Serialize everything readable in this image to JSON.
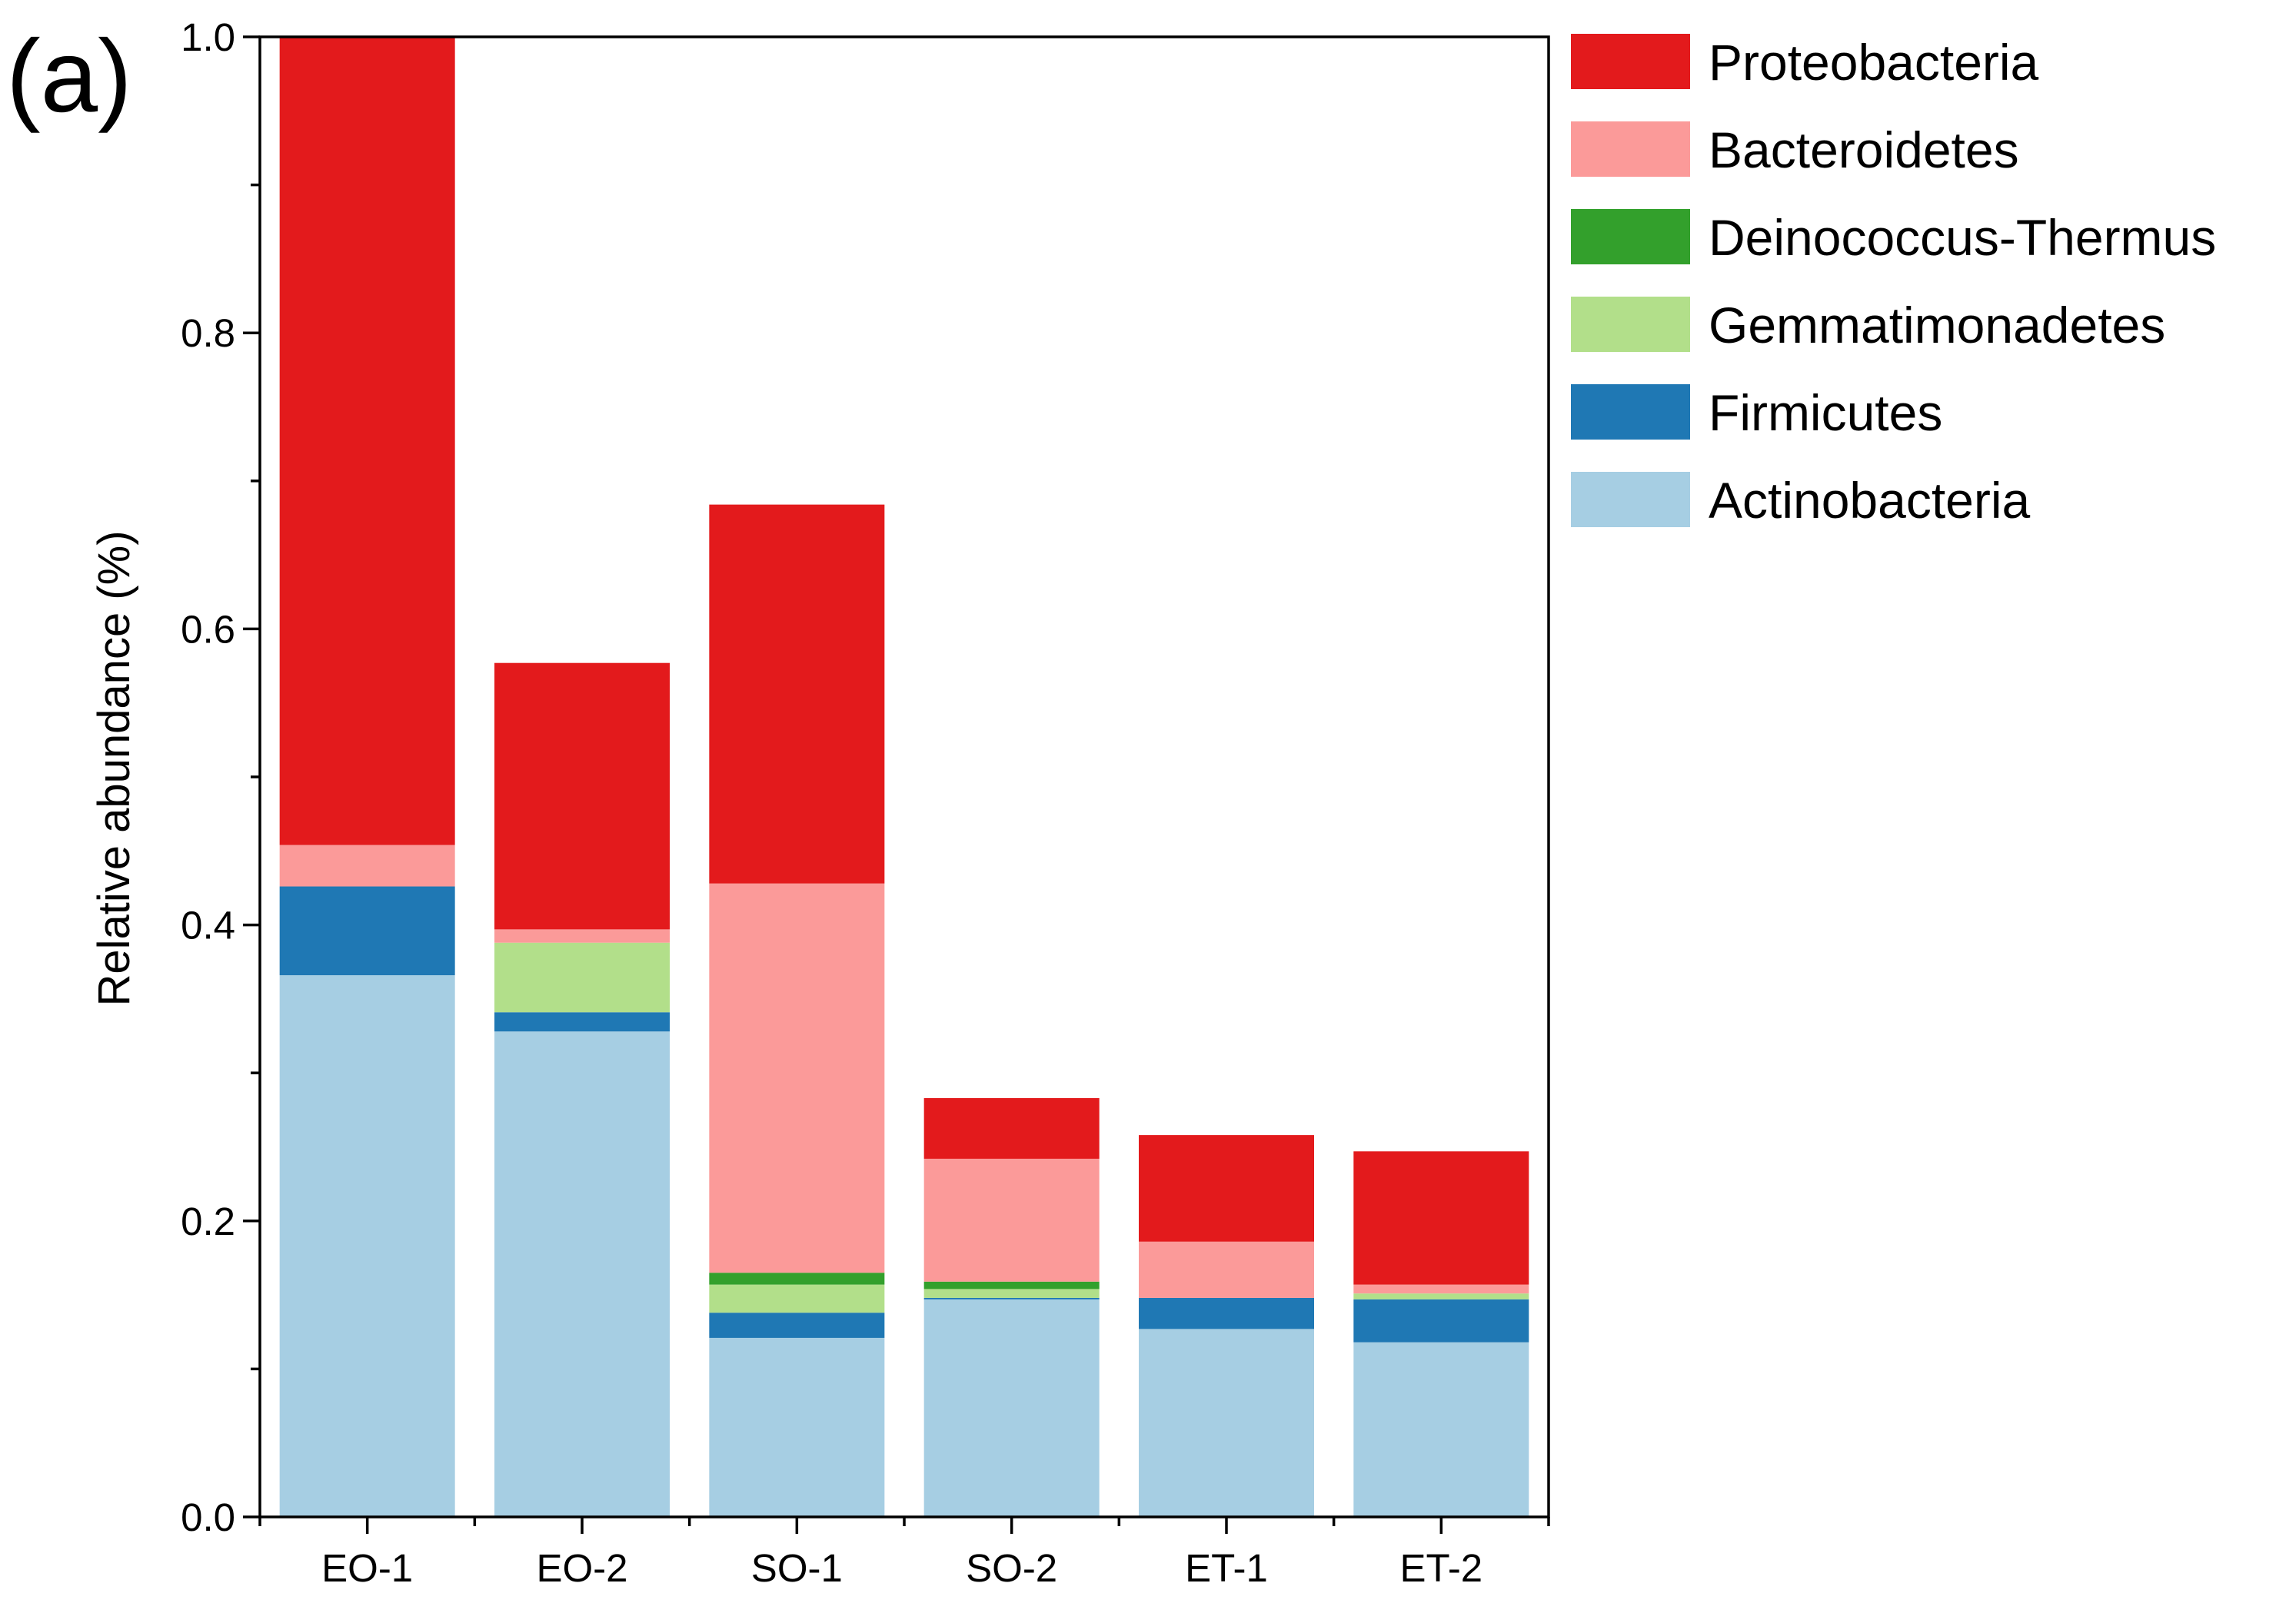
{
  "panel_label": "(a)",
  "chart_data": {
    "type": "stacked-bar",
    "title": "",
    "xlabel": "",
    "ylabel": "Relative abundance (%)",
    "ylim": [
      0,
      1.0
    ],
    "yticks": [
      "0.0",
      "0.2",
      "0.4",
      "0.6",
      "0.8",
      "1.0"
    ],
    "categories": [
      "EO-1",
      "EO-2",
      "SO-1",
      "SO-2",
      "ET-1",
      "ET-2"
    ],
    "legend_position": "right",
    "series": [
      {
        "name": "Actinobacteria",
        "color": "#a6cee3",
        "values": [
          0.366,
          0.328,
          0.121,
          0.147,
          0.127,
          0.118
        ]
      },
      {
        "name": "Firmicutes",
        "color": "#1f78b4",
        "values": [
          0.06,
          0.013,
          0.017,
          0.001,
          0.021,
          0.029
        ]
      },
      {
        "name": "Gemmatimonadetes",
        "color": "#b2df8a",
        "values": [
          0.0,
          0.047,
          0.019,
          0.006,
          0.0,
          0.004
        ]
      },
      {
        "name": "Deinococcus-Thermus",
        "color": "#33a02c",
        "values": [
          0.0,
          0.0,
          0.008,
          0.005,
          0.0,
          0.0
        ]
      },
      {
        "name": "Bacteroidetes",
        "color": "#fb9a99",
        "values": [
          0.028,
          0.009,
          0.263,
          0.083,
          0.038,
          0.006
        ]
      },
      {
        "name": "Proteobacteria",
        "color": "#e31a1c",
        "values": [
          0.546,
          0.18,
          0.256,
          0.041,
          0.072,
          0.09
        ]
      }
    ],
    "legend_order": [
      "Proteobacteria",
      "Bacteroidetes",
      "Deinococcus-Thermus",
      "Gemmatimonadetes",
      "Firmicutes",
      "Actinobacteria"
    ]
  }
}
